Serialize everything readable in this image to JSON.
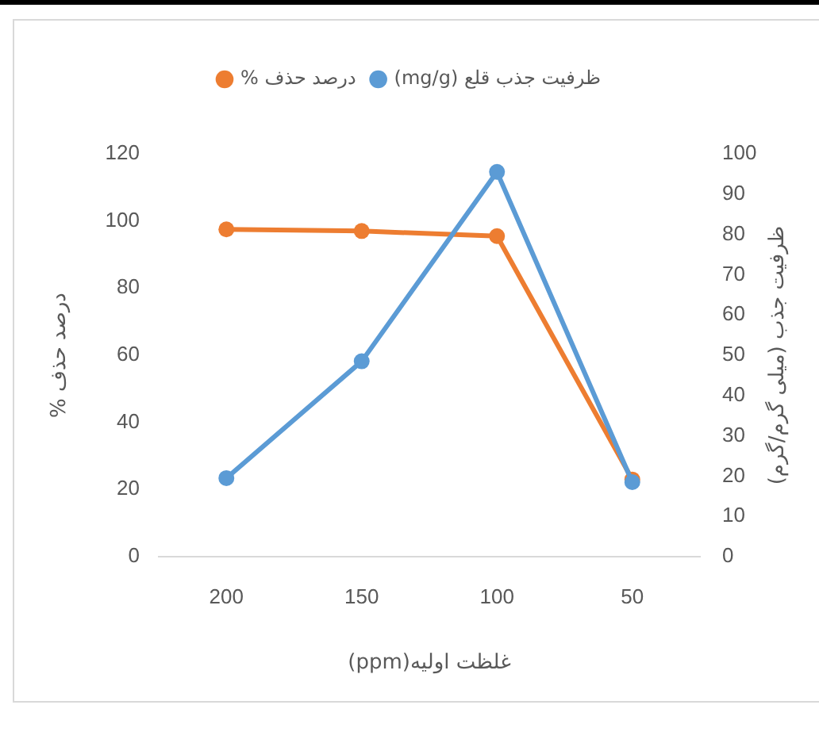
{
  "chart_data": {
    "type": "line",
    "categories": [
      "200",
      "150",
      "100",
      "50"
    ],
    "xlabel": "غلظت اولیه(ppm)",
    "ylabel": "درصد حذف %",
    "y2label": "ظرفیت جذب (میلی گرم/گرم)",
    "series": [
      {
        "name": "درصد حذف %",
        "color": "#ed7d31",
        "values": [
          97.5,
          97,
          95.5,
          23
        ]
      },
      {
        "name": "ظرفیت جذب قلع (mg/g)",
        "color": "#5b9bd5",
        "values": [
          19.5,
          48.5,
          95.5,
          18.5
        ],
        "axis": "y2"
      }
    ],
    "ylim": [
      0,
      120
    ],
    "yticks": [
      0,
      20,
      40,
      60,
      80,
      100,
      120
    ],
    "y2lim": [
      0,
      100
    ],
    "y2ticks": [
      0,
      10,
      20,
      30,
      40,
      50,
      60,
      70,
      80,
      90,
      100
    ],
    "grid": false,
    "legend": "top",
    "marker": "circle"
  }
}
